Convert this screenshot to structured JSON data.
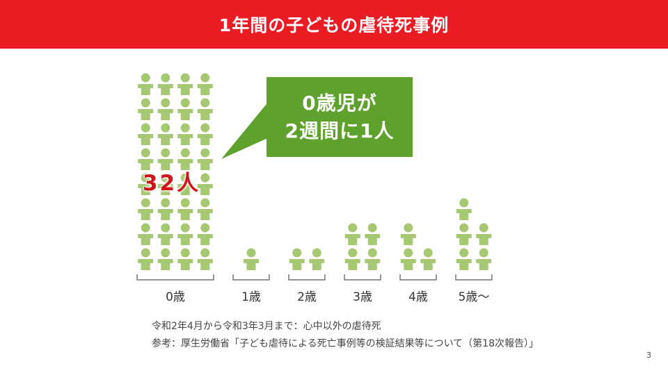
{
  "header": {
    "title": "1年間の子どもの虐待死事例"
  },
  "colors": {
    "header_bg": "#ec1c24",
    "figure": "#a6c872",
    "callout_bg": "#5ea22d",
    "count_label": "#d0141c"
  },
  "callout": {
    "line1": "0歳児が",
    "line2": "2週間に1人"
  },
  "count_label": "32人",
  "chart_data": {
    "type": "bar",
    "categories": [
      "0歳",
      "1歳",
      "2歳",
      "3歳",
      "4歳",
      "5歳〜"
    ],
    "values": [
      32,
      1,
      2,
      4,
      3,
      5
    ],
    "unit": "人",
    "title": "",
    "xlabel": "",
    "ylabel": ""
  },
  "notes": {
    "line1": "令和2年4月から令和3年3月まで：心中以外の虐待死",
    "line2": "参考：厚生労働省「子ども虐待による死亡事例等の検証結果等について（第18次報告）」"
  },
  "page_number": "3"
}
